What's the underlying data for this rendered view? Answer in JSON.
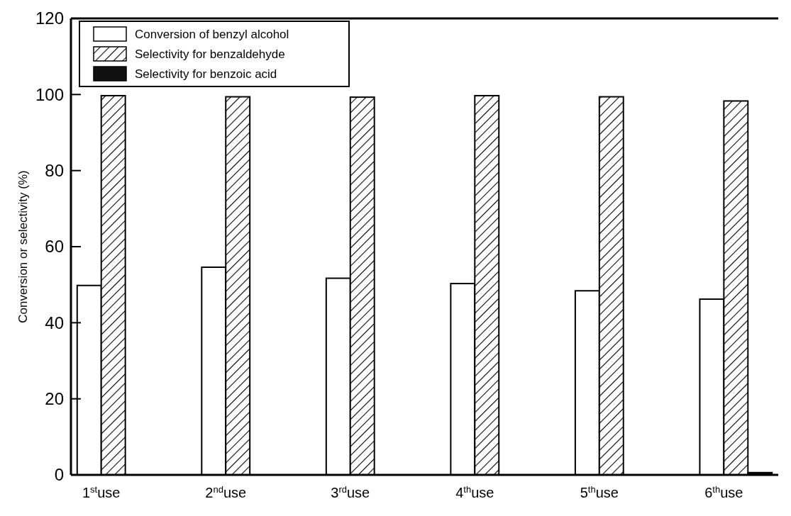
{
  "chart_data": {
    "type": "bar",
    "ylabel": "Conversion or selectivity (%)",
    "categories": [
      "1$^{st}$use",
      "2$^{nd}$use",
      "3$^{rd}$use",
      "4$^{th}$use",
      "5$^{th}$use",
      "6$^{th}$use"
    ],
    "series": [
      {
        "name": "Conversion of benzyl alcohol",
        "color": "#ffffff",
        "values": [
          49.8,
          54.6,
          51.7,
          50.3,
          48.4,
          46.2
        ]
      },
      {
        "name": "Selectivity for benzaldehyde",
        "color": "#000000",
        "values": [
          99.7,
          99.4,
          99.3,
          99.7,
          99.4,
          98.3
        ]
      },
      {
        "name": "Selectivity for benzoic acid",
        "color": "#111111",
        "values": [
          0,
          0,
          0,
          0,
          0,
          0.6
        ]
      }
    ],
    "ylim": [
      0,
      120
    ],
    "yticks": [
      0,
      20,
      40,
      60,
      80,
      100,
      120
    ],
    "legend": "top left",
    "grid": false
  }
}
